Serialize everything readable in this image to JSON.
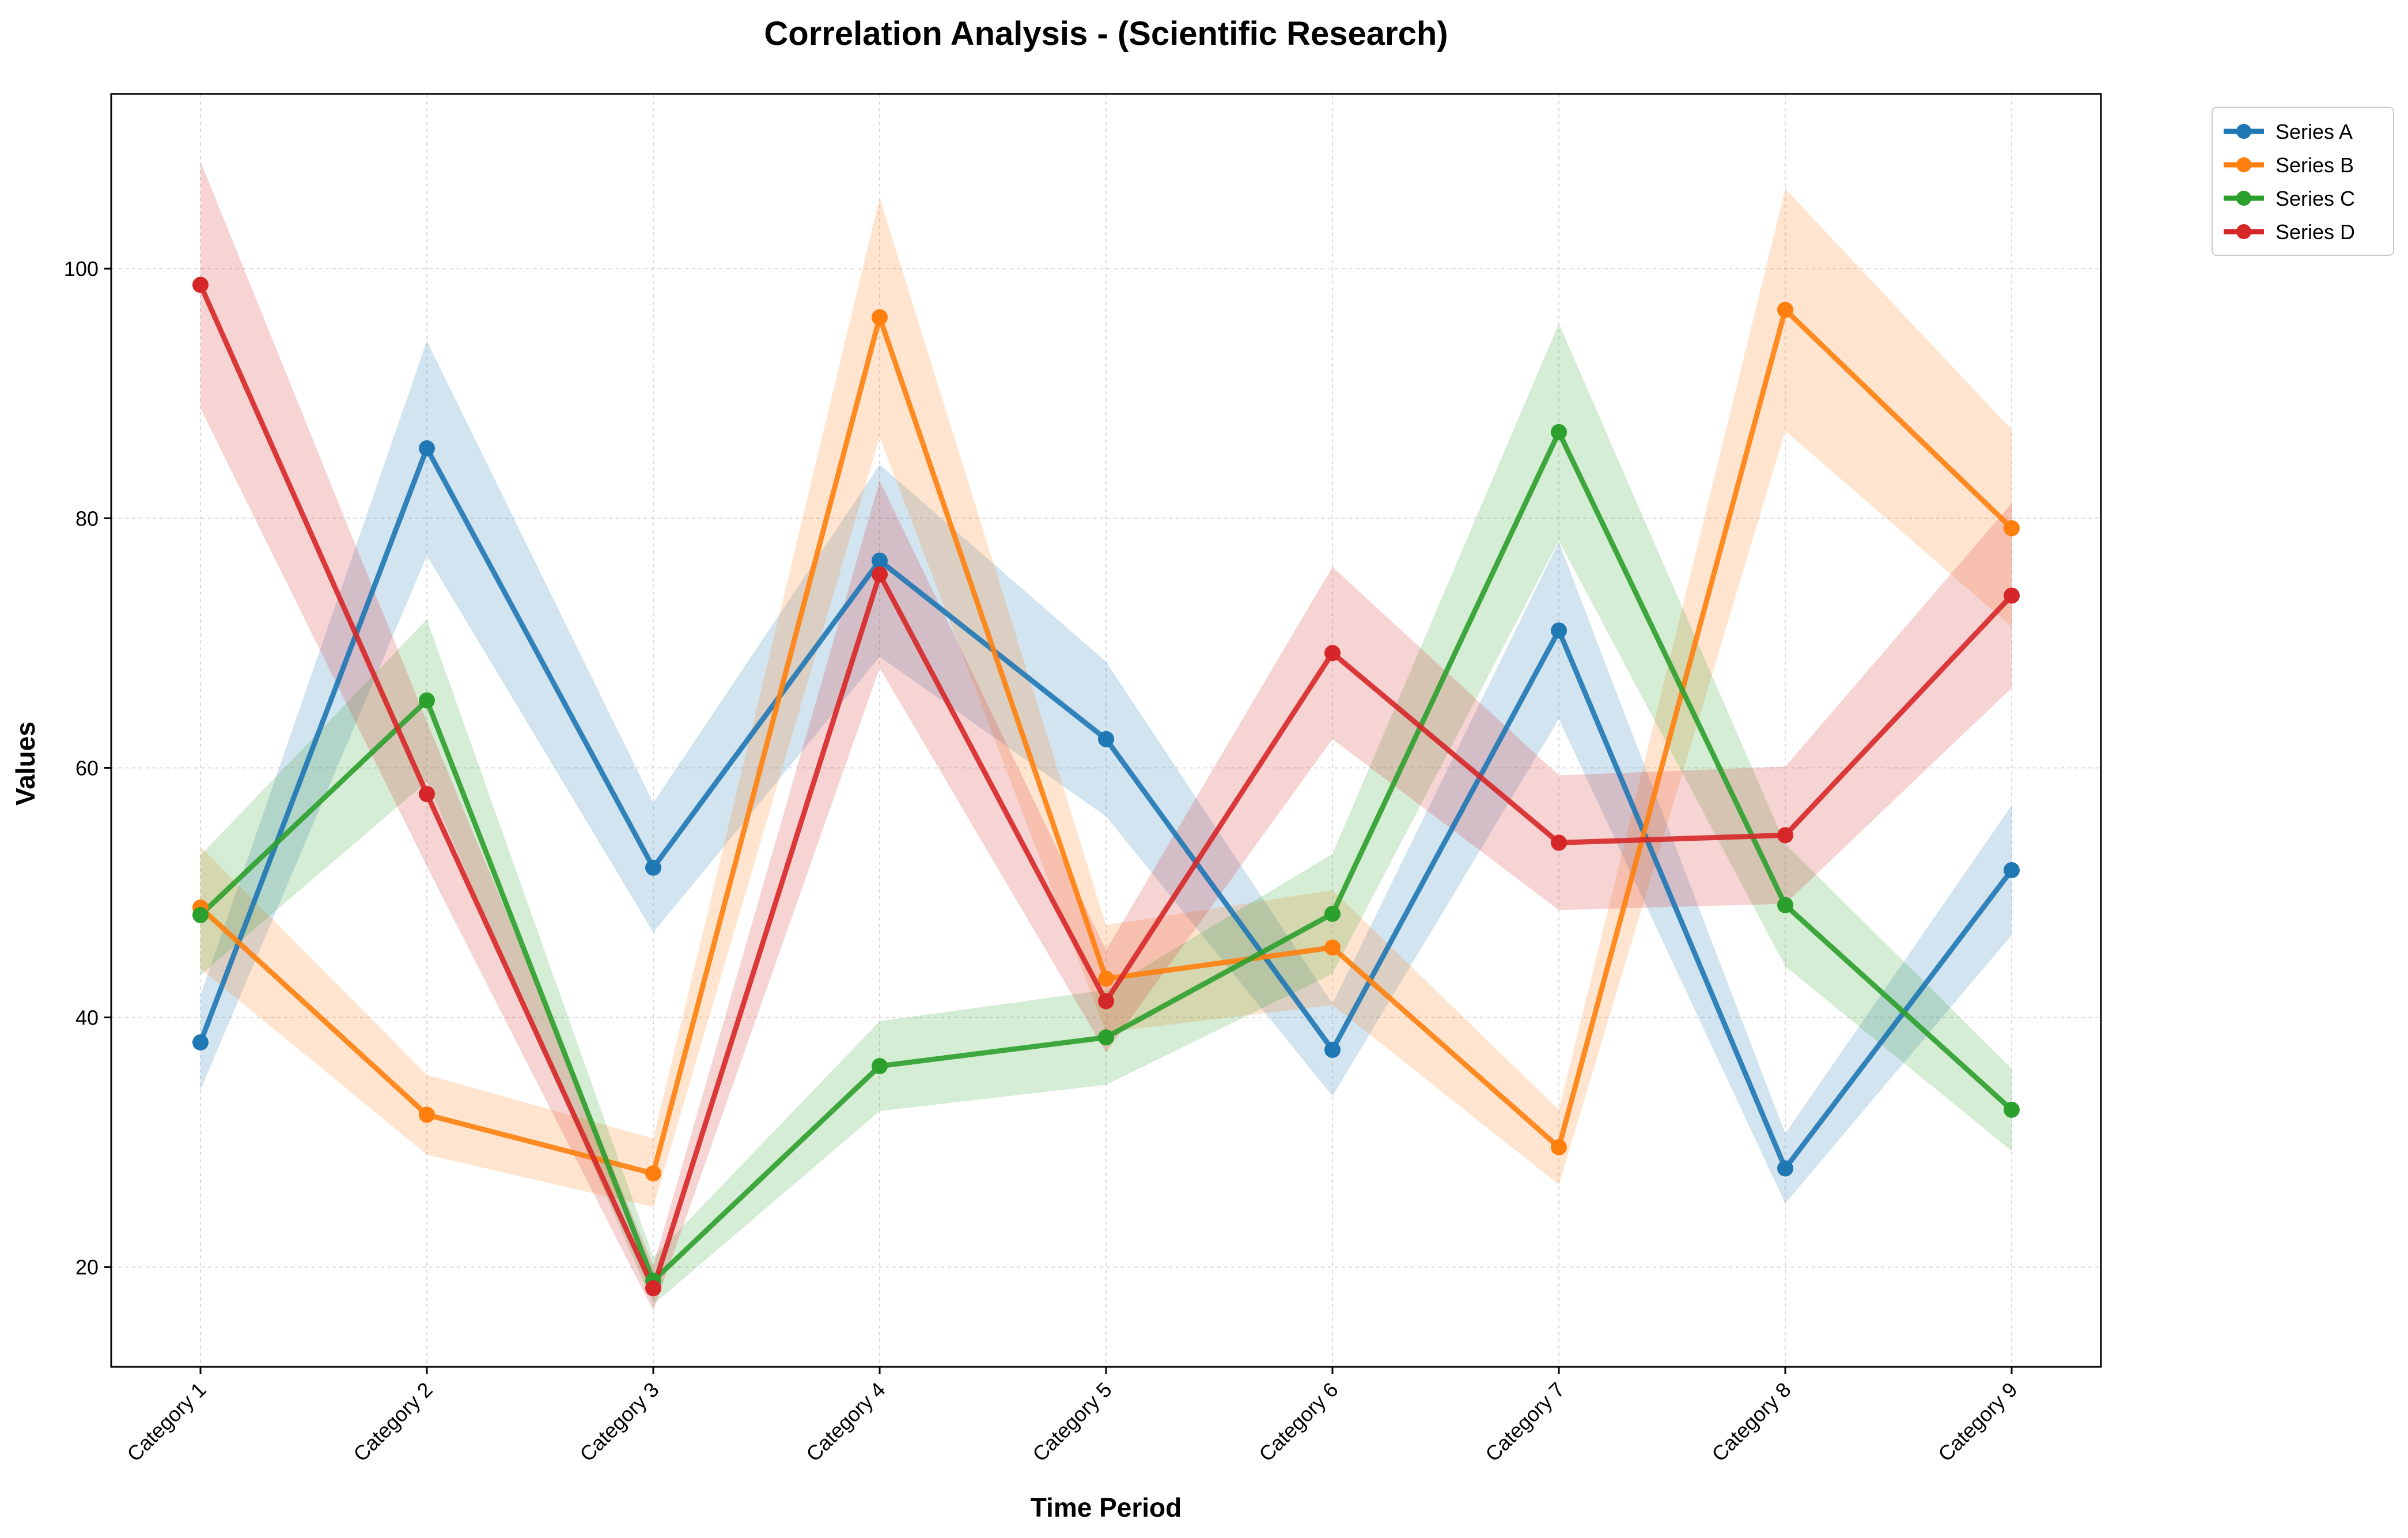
{
  "chart_data": {
    "type": "line",
    "title": "Correlation Analysis - (Scientific Research)",
    "xlabel": "Time Period",
    "ylabel": "Values",
    "categories": [
      "Category 1",
      "Category 2",
      "Category 3",
      "Category 4",
      "Category 5",
      "Category 6",
      "Category 7",
      "Category 8",
      "Category 9"
    ],
    "ylim": [
      12,
      114
    ],
    "yticks": [
      20,
      40,
      60,
      80,
      100
    ],
    "grid": true,
    "legend_position": "outside-top-right",
    "bands": "shaded uncertainty band around each series",
    "series": [
      {
        "name": "Series A",
        "color": "#1f77b4",
        "values": [
          38.0,
          85.6,
          52.0,
          76.6,
          62.3,
          37.4,
          71.0,
          27.9,
          51.8
        ],
        "lower": [
          34.2,
          77.0,
          46.8,
          68.9,
          56.1,
          33.7,
          63.9,
          25.1,
          46.6
        ],
        "upper": [
          41.8,
          94.2,
          57.2,
          84.3,
          68.5,
          41.1,
          78.1,
          30.7,
          57.0
        ]
      },
      {
        "name": "Series B",
        "color": "#ff7f0e",
        "values": [
          48.8,
          32.2,
          27.5,
          96.1,
          43.1,
          45.6,
          29.6,
          96.7,
          79.2
        ],
        "lower": [
          43.9,
          29.0,
          24.8,
          86.5,
          38.8,
          41.0,
          26.6,
          87.0,
          71.3
        ],
        "upper": [
          53.7,
          35.4,
          30.3,
          105.7,
          47.4,
          50.2,
          32.6,
          106.4,
          87.1
        ]
      },
      {
        "name": "Series C",
        "color": "#2ca02c",
        "values": [
          48.2,
          65.4,
          18.9,
          36.1,
          38.4,
          48.3,
          86.9,
          49.0,
          32.6
        ],
        "lower": [
          43.4,
          58.9,
          17.0,
          32.5,
          34.6,
          43.5,
          78.2,
          44.1,
          29.3
        ],
        "upper": [
          53.0,
          71.9,
          20.8,
          39.7,
          42.2,
          53.1,
          95.6,
          53.9,
          35.9
        ]
      },
      {
        "name": "Series D",
        "color": "#d62728",
        "values": [
          98.7,
          57.9,
          18.3,
          75.5,
          41.3,
          69.2,
          54.0,
          54.6,
          73.8
        ],
        "lower": [
          88.8,
          52.1,
          16.5,
          68.0,
          37.2,
          62.3,
          48.6,
          49.1,
          66.4
        ],
        "upper": [
          108.6,
          63.7,
          20.1,
          83.0,
          45.4,
          76.1,
          59.4,
          60.1,
          81.2
        ]
      }
    ]
  }
}
